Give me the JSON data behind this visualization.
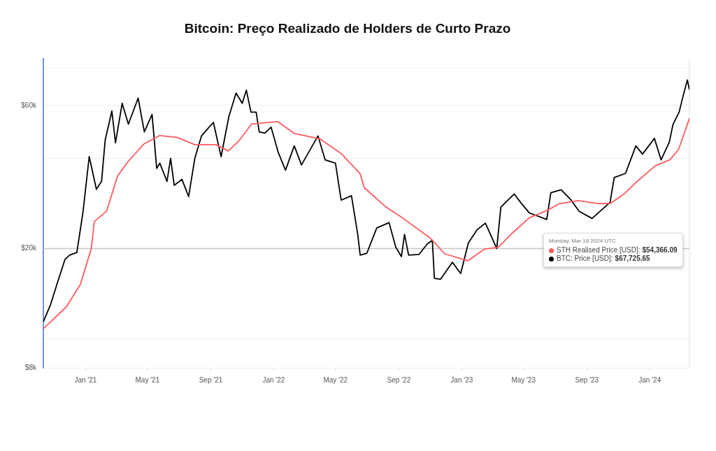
{
  "chart_data": {
    "type": "line",
    "title": "Bitcoin: Preço Realizado de Holders de Curto Prazo",
    "annotations": [
      "Monday, Mar 18 2024 UTC",
      "$54,366.09",
      "$67,725.65"
    ],
    "legend": "right",
    "xlim": [
      "2020-10-11",
      "2024-03-18"
    ],
    "xticks": [
      {
        "value": "2021-01-01",
        "label": "Jan '21"
      },
      {
        "value": "2021-05-01",
        "label": "May '21"
      },
      {
        "value": "2021-09-01",
        "label": "Sep '21"
      },
      {
        "value": "2022-01-01",
        "label": "Jan '22"
      },
      {
        "value": "2022-05-01",
        "label": "May '22"
      },
      {
        "value": "2022-09-01",
        "label": "Sep '22"
      },
      {
        "value": "2023-01-01",
        "label": "Jan '23"
      },
      {
        "value": "2023-05-01",
        "label": "May '23"
      },
      {
        "value": "2023-09-01",
        "label": "Sep '23"
      },
      {
        "value": "2024-01-01",
        "label": "Jan '24"
      }
    ],
    "ylim": [
      8000,
      86000
    ],
    "yticks": [
      {
        "value": 8000,
        "label": "$8k"
      },
      {
        "value": 10000,
        "label": null
      },
      {
        "value": 20000,
        "label": "$20k"
      },
      {
        "value": 40000,
        "label": null
      },
      {
        "value": 60000,
        "label": "$60k"
      },
      {
        "value": 80000,
        "label": null
      }
    ],
    "log": "y",
    "grid": "y",
    "marker": "none",
    "line_style": "solid",
    "ref_lines": [
      {
        "axis": "y",
        "value": 20000,
        "color": "#c8c8c8"
      }
    ],
    "series": [
      {
        "name": "STH Realised Price [USD]:",
        "color": "#ff5a5f",
        "x": [
          "2020-10-11",
          "2020-11-25",
          "2020-12-22",
          "2021-01-12",
          "2021-01-18",
          "2021-02-11",
          "2021-03-04",
          "2021-03-24",
          "2021-04-24",
          "2021-05-24",
          "2021-06-27",
          "2021-08-01",
          "2021-09-11",
          "2021-10-05",
          "2021-10-25",
          "2021-11-19",
          "2022-01-09",
          "2022-02-10",
          "2022-04-01",
          "2022-05-12",
          "2022-06-18",
          "2022-06-26",
          "2022-08-06",
          "2022-09-08",
          "2022-11-02",
          "2022-11-29",
          "2023-01-13",
          "2023-02-14",
          "2023-03-13",
          "2023-04-09",
          "2023-05-12",
          "2023-06-16",
          "2023-07-09",
          "2023-08-15",
          "2023-09-25",
          "2023-10-17",
          "2023-11-13",
          "2023-12-06",
          "2024-01-12",
          "2024-02-09",
          "2024-02-26",
          "2024-03-07",
          "2024-03-18"
        ],
        "values": [
          10800,
          12800,
          15200,
          20000,
          24600,
          26700,
          34900,
          38900,
          44600,
          47600,
          47000,
          44400,
          44400,
          42300,
          45600,
          52000,
          53000,
          48400,
          46400,
          41500,
          35500,
          31900,
          27600,
          25300,
          21600,
          19200,
          18200,
          19900,
          20200,
          22500,
          25300,
          26800,
          28200,
          28900,
          28200,
          28300,
          30500,
          33300,
          37800,
          39500,
          42800,
          48000,
          54366.09
        ]
      },
      {
        "name": "BTC: Price [USD]:",
        "color": "#000000",
        "x": [
          "2020-10-11",
          "2020-10-25",
          "2020-11-08",
          "2020-11-22",
          "2020-12-01",
          "2020-12-15",
          "2020-12-27",
          "2021-01-08",
          "2021-01-22",
          "2021-02-01",
          "2021-02-08",
          "2021-02-21",
          "2021-02-28",
          "2021-03-13",
          "2021-03-25",
          "2021-04-13",
          "2021-04-25",
          "2021-05-10",
          "2021-05-19",
          "2021-05-25",
          "2021-06-08",
          "2021-06-15",
          "2021-06-22",
          "2021-07-07",
          "2021-07-20",
          "2021-08-01",
          "2021-08-14",
          "2021-08-23",
          "2021-09-06",
          "2021-09-21",
          "2021-10-06",
          "2021-10-20",
          "2021-11-01",
          "2021-11-09",
          "2021-11-18",
          "2021-11-28",
          "2021-12-04",
          "2021-12-15",
          "2021-12-27",
          "2022-01-10",
          "2022-01-24",
          "2022-02-10",
          "2022-02-24",
          "2022-03-28",
          "2022-04-11",
          "2022-05-01",
          "2022-05-12",
          "2022-06-01",
          "2022-06-13",
          "2022-06-18",
          "2022-07-01",
          "2022-07-20",
          "2022-08-13",
          "2022-08-26",
          "2022-09-06",
          "2022-09-12",
          "2022-09-20",
          "2022-10-10",
          "2022-10-26",
          "2022-11-05",
          "2022-11-09",
          "2022-11-21",
          "2022-12-14",
          "2022-12-30",
          "2023-01-14",
          "2023-01-31",
          "2023-02-16",
          "2023-03-10",
          "2023-03-18",
          "2023-04-13",
          "2023-04-26",
          "2023-05-12",
          "2023-06-15",
          "2023-06-23",
          "2023-07-13",
          "2023-07-31",
          "2023-08-17",
          "2023-09-11",
          "2023-10-16",
          "2023-10-24",
          "2023-11-15",
          "2023-12-05",
          "2023-12-18",
          "2024-01-10",
          "2024-01-23",
          "2024-02-08",
          "2024-02-15",
          "2024-02-27",
          "2024-03-05",
          "2024-03-14",
          "2024-03-18"
        ],
        "values": [
          11400,
          13000,
          15500,
          18400,
          19000,
          19400,
          26500,
          40500,
          31500,
          33500,
          46000,
          57500,
          45000,
          61000,
          52000,
          63500,
          49000,
          56000,
          37000,
          38500,
          33500,
          40000,
          32500,
          34000,
          29800,
          40000,
          47500,
          49500,
          52700,
          40500,
          55000,
          66000,
          61000,
          67500,
          57000,
          57000,
          49000,
          48500,
          50800,
          41800,
          36500,
          44000,
          38000,
          47500,
          39500,
          38500,
          29000,
          30000,
          22400,
          19000,
          19300,
          23400,
          24400,
          20200,
          18800,
          22300,
          19000,
          19100,
          20700,
          21300,
          15900,
          15800,
          18000,
          16500,
          20900,
          23100,
          24300,
          20000,
          27500,
          30400,
          28400,
          26300,
          25000,
          30700,
          31400,
          29200,
          26600,
          25200,
          28500,
          34500,
          35600,
          44000,
          41300,
          46600,
          39500,
          45300,
          51800,
          57000,
          63800,
          73000,
          67725.65
        ]
      }
    ]
  }
}
